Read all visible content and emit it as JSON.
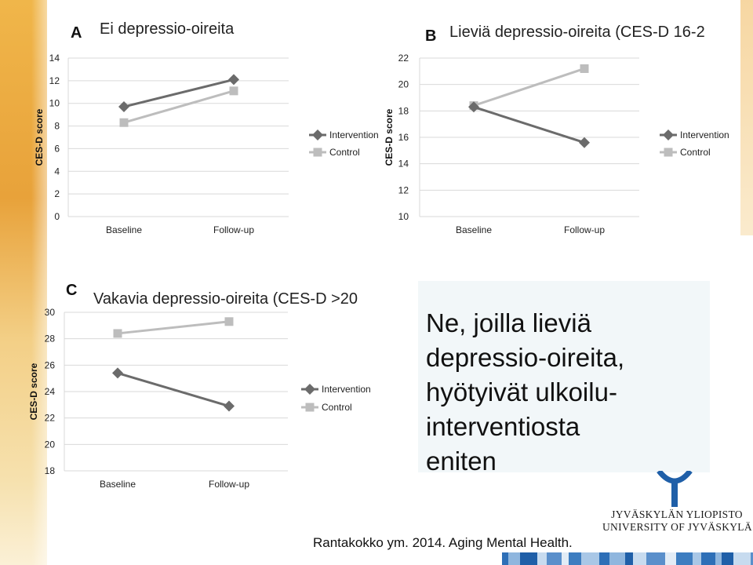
{
  "chart_data": [
    {
      "type": "line",
      "panel_label": "A",
      "title": "Ei depressio-oireita",
      "ylabel": "CES-D score",
      "categories": [
        "Baseline",
        "Follow-up"
      ],
      "yticks": [
        "0",
        "2",
        "4",
        "6",
        "8",
        "10",
        "12",
        "14"
      ],
      "ylim": [
        0,
        14
      ],
      "series": [
        {
          "name": "Intervention",
          "values": [
            9.7,
            12.1
          ]
        },
        {
          "name": "Control",
          "values": [
            8.3,
            11.1
          ]
        }
      ],
      "legend": "right",
      "grid": true
    },
    {
      "type": "line",
      "panel_label": "B",
      "title": "Lieviä depressio-oireita (CES-D 16-2",
      "ylabel": "CES-D score",
      "categories": [
        "Baseline",
        "Follow-up"
      ],
      "yticks": [
        "10",
        "12",
        "14",
        "16",
        "18",
        "20",
        "22"
      ],
      "ylim": [
        10,
        22
      ],
      "series": [
        {
          "name": "Intervention",
          "values": [
            18.3,
            15.6
          ]
        },
        {
          "name": "Control",
          "values": [
            18.4,
            21.2
          ]
        }
      ],
      "legend": "right",
      "grid": true
    },
    {
      "type": "line",
      "panel_label": "C",
      "title": "Vakavia depressio-oireita (CES-D >20",
      "ylabel": "CES-D score",
      "categories": [
        "Baseline",
        "Follow-up"
      ],
      "yticks": [
        "18",
        "20",
        "22",
        "24",
        "26",
        "28",
        "30"
      ],
      "ylim": [
        18,
        30
      ],
      "series": [
        {
          "name": "Intervention",
          "values": [
            25.4,
            22.9
          ]
        },
        {
          "name": "Control",
          "values": [
            28.4,
            29.3
          ]
        }
      ],
      "legend": "right",
      "grid": true
    }
  ],
  "colors": {
    "intervention": "#6b6b6b",
    "control": "#bdbdbd",
    "grid": "#d9d9d9",
    "callout_bg": "#f2f7f9",
    "logo_blue": "#1f5fa8"
  },
  "callout": {
    "lines": [
      "Ne, joilla lieviä",
      "depressio-oireita,",
      "hyötyivät ulkoilu-",
      "interventiosta",
      "eniten"
    ]
  },
  "citation": "Rantakokko ym. 2014. Aging Mental Health.",
  "logo": {
    "line1": "JYVÄSKYLÄN YLIOPISTO",
    "line2": "UNIVERSITY OF JYVÄSKYLÄ"
  }
}
